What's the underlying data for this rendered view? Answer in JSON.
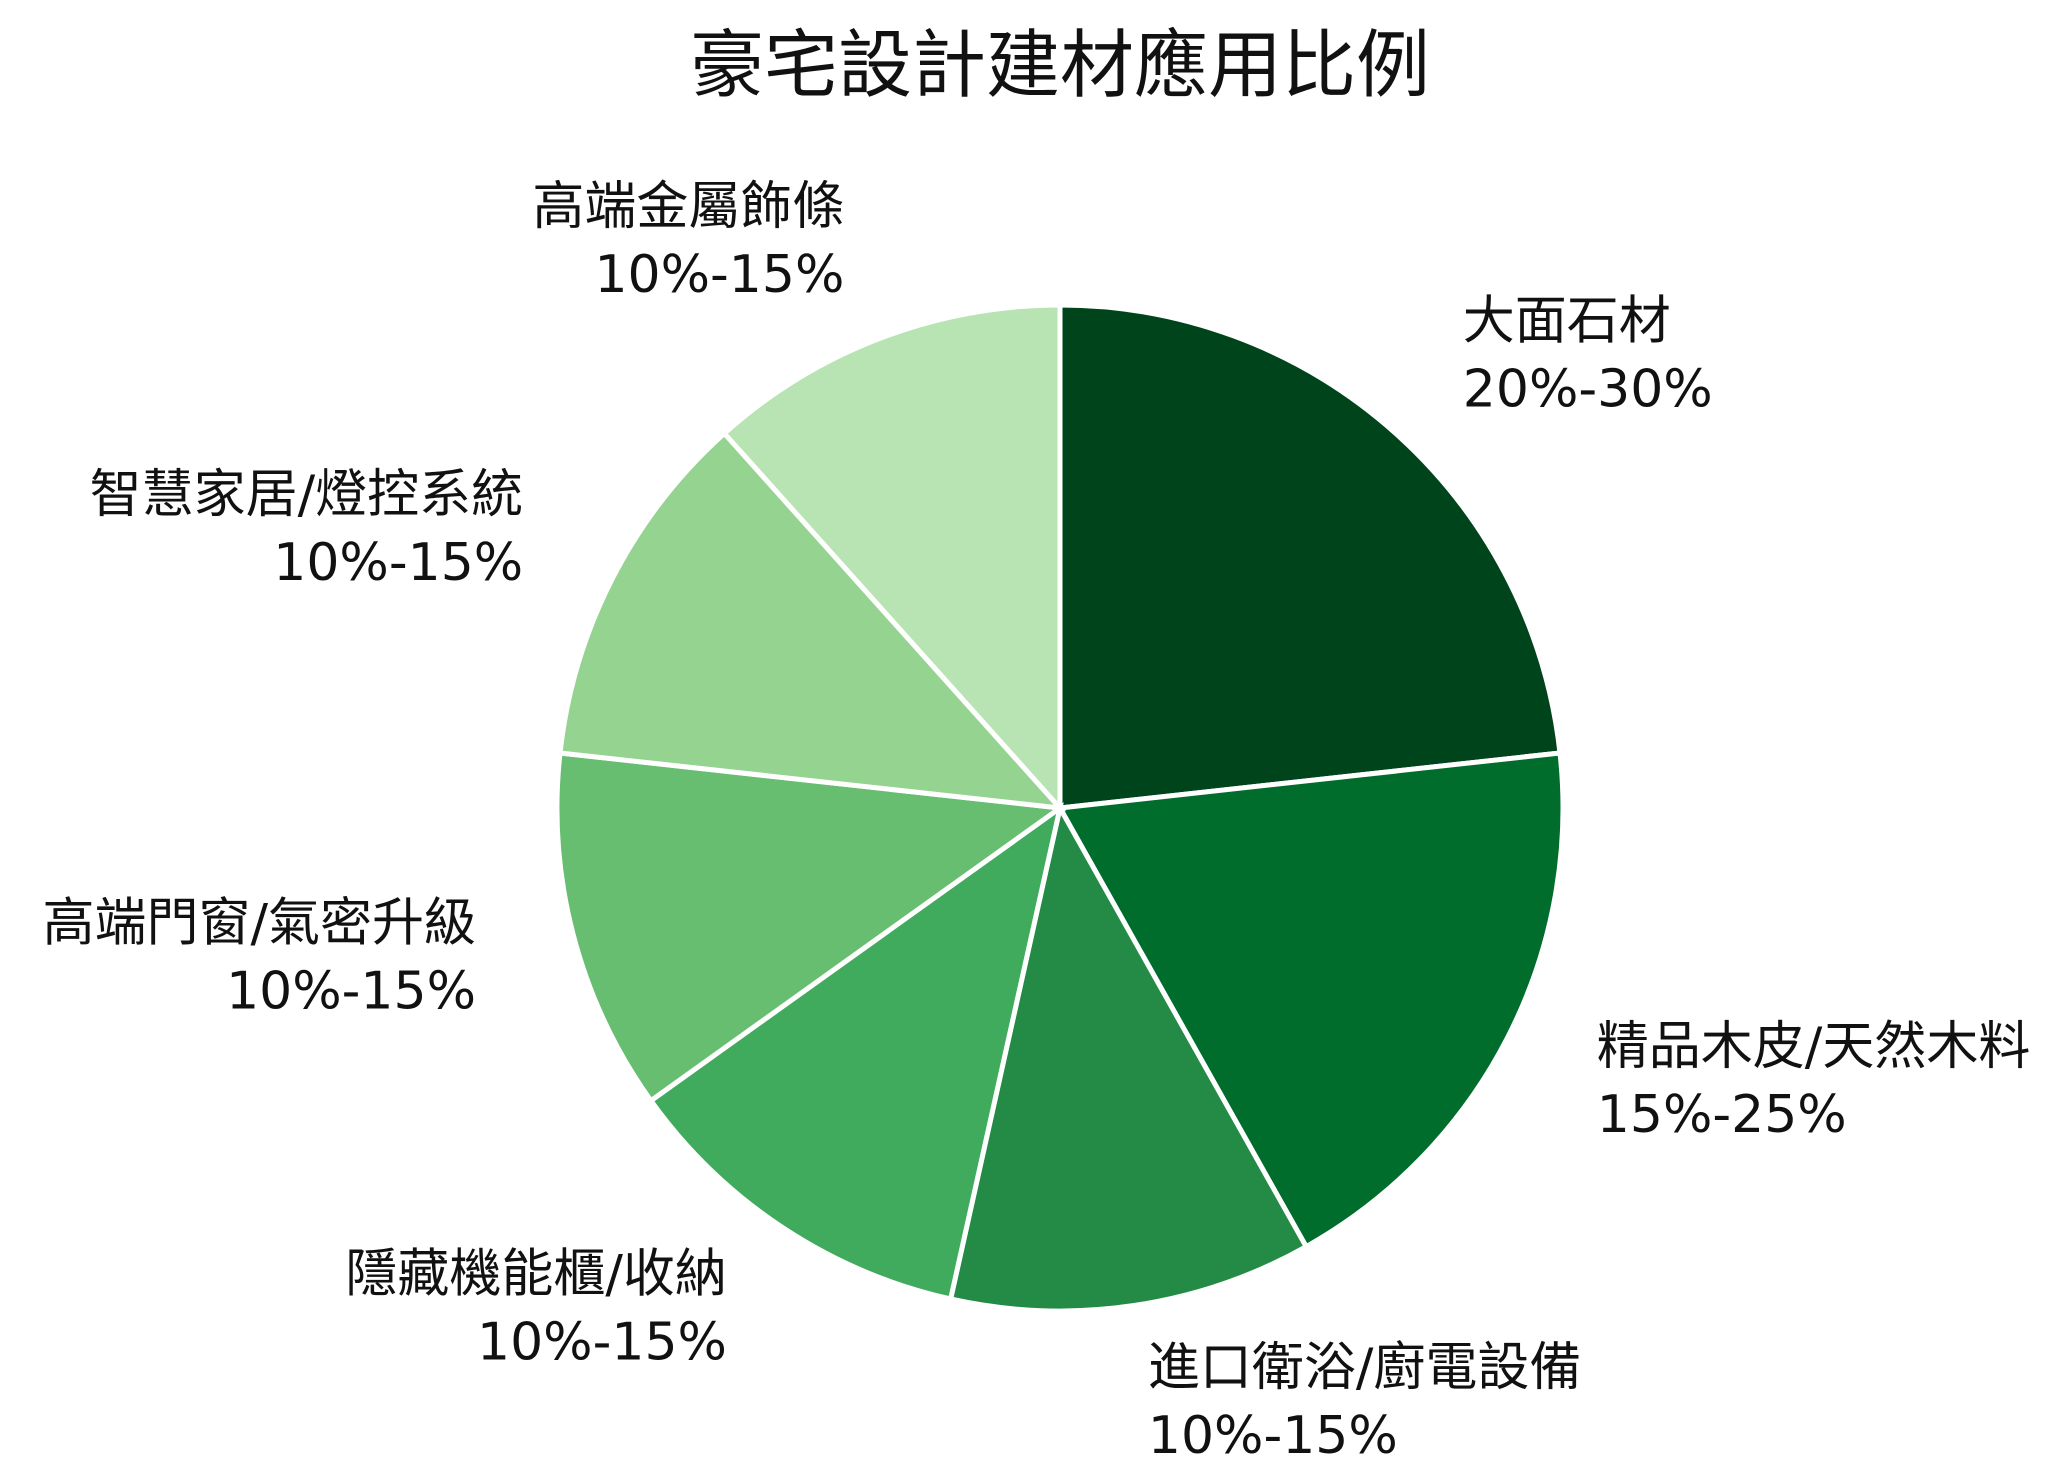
{
  "chart_data": {
    "type": "pie",
    "title": "豪宅設計建材應用比例",
    "categories": [
      "大面石材",
      "精品木皮/天然木料",
      "進口衛浴/廚電設備",
      "隱藏機能櫃/收納",
      "高端門窗/氣密升級",
      "智慧家居/燈控系統",
      "高端金屬飾條"
    ],
    "values": [
      25,
      20,
      12.5,
      12.5,
      12.5,
      12.5,
      12.5
    ],
    "value_labels": [
      "20%-30%",
      "15%-25%",
      "10%-15%",
      "10%-15%",
      "10%-15%",
      "10%-15%",
      "10%-15%"
    ],
    "colors": [
      "#00441b",
      "#006d2c",
      "#238b45",
      "#41ab5d",
      "#67bd70",
      "#95d391",
      "#b8e3b3"
    ]
  }
}
